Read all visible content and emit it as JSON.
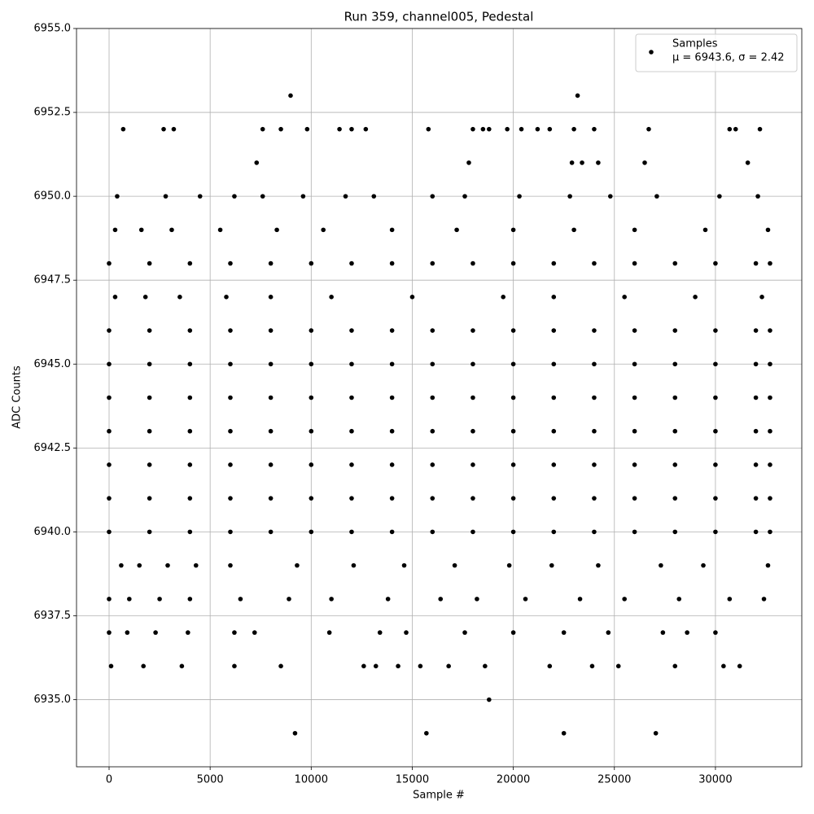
{
  "chart_data": {
    "type": "scatter",
    "title": "Run 359, channel005, Pedestal",
    "x_label": "Sample #",
    "y_label": "ADC Counts",
    "xlim": [
      -1611,
      34272
    ],
    "xticks": [
      0,
      5000,
      10000,
      15000,
      20000,
      25000,
      30000
    ],
    "ylim": [
      6933,
      6955
    ],
    "yticks": [
      {
        "value": 6935,
        "label": "6935.0"
      },
      {
        "value": 6937.5,
        "label": "6937.5"
      },
      {
        "value": 6940,
        "label": "6940.0"
      },
      {
        "value": 6942.5,
        "label": "6942.5"
      },
      {
        "value": 6945,
        "label": "6945.0"
      },
      {
        "value": 6947.5,
        "label": "6947.5"
      },
      {
        "value": 6950,
        "label": "6950.0"
      },
      {
        "value": 6952.5,
        "label": "6952.5"
      },
      {
        "value": 6955,
        "label": "6955.0"
      }
    ],
    "grid": true,
    "legend": "upper right",
    "series": [
      {
        "name": "Samples",
        "label": "μ = 6943.6, σ = 2.42",
        "color": "#000000",
        "x": [
          0,
          2000,
          4000,
          6000,
          8000,
          10000,
          12000,
          14000,
          16000,
          18000,
          20000,
          22000,
          24000,
          26000,
          28000,
          30000,
          32000,
          32700,
          0,
          2000,
          4000,
          6000,
          8000,
          10000,
          12000,
          14000,
          16000,
          18000,
          20000,
          22000,
          24000,
          26000,
          28000,
          30000,
          32000,
          32700,
          0,
          2000,
          4000,
          6000,
          8000,
          10000,
          12000,
          14000,
          16000,
          18000,
          20000,
          22000,
          24000,
          26000,
          28000,
          30000,
          32000,
          32700,
          0,
          2000,
          4000,
          6000,
          8000,
          10000,
          12000,
          14000,
          16000,
          18000,
          20000,
          22000,
          24000,
          26000,
          28000,
          30000,
          32000,
          32700,
          0,
          2000,
          4000,
          6000,
          8000,
          10000,
          12000,
          14000,
          16000,
          18000,
          20000,
          22000,
          24000,
          26000,
          28000,
          30000,
          32000,
          32700,
          0,
          2000,
          4000,
          6000,
          8000,
          10000,
          12000,
          14000,
          16000,
          18000,
          20000,
          22000,
          24000,
          26000,
          28000,
          30000,
          32000,
          32700,
          0,
          2000,
          4000,
          6000,
          8000,
          10000,
          12000,
          14000,
          16000,
          18000,
          20000,
          22000,
          24000,
          26000,
          28000,
          30000,
          32000,
          32700,
          0,
          2000,
          4000,
          6000,
          8000,
          10000,
          12000,
          14000,
          16000,
          18000,
          20000,
          22000,
          24000,
          26000,
          28000,
          30000,
          32000,
          32700,
          300,
          1800,
          3500,
          5800,
          8000,
          11000,
          15000,
          19500,
          22000,
          25500,
          29000,
          32300,
          300,
          1600,
          3100,
          5500,
          8300,
          10600,
          14000,
          17200,
          20000,
          23000,
          26000,
          29500,
          32600,
          400,
          2800,
          4500,
          6200,
          7600,
          9600,
          11700,
          13100,
          16000,
          17600,
          20300,
          22800,
          24800,
          27100,
          30200,
          32100,
          600,
          1500,
          2900,
          4300,
          6000,
          9300,
          12100,
          14600,
          17100,
          19800,
          21900,
          24200,
          27300,
          29400,
          32600,
          0,
          1000,
          2500,
          4000,
          6500,
          8900,
          11000,
          13800,
          16400,
          18200,
          20600,
          23300,
          25500,
          28200,
          30700,
          32400,
          0,
          900,
          2300,
          3900,
          6200,
          7200,
          10900,
          13400,
          14700,
          17600,
          20000,
          22500,
          24700,
          27400,
          28600,
          30000,
          100,
          1700,
          3600,
          6200,
          8500,
          12600,
          13200,
          14300,
          15400,
          16800,
          18600,
          21800,
          23900,
          25200,
          28000,
          30400,
          31200,
          700,
          2700,
          3200,
          7600,
          8500,
          9800,
          11400,
          12000,
          12700,
          15800,
          18000,
          18500,
          18800,
          19700,
          20400,
          21200,
          21800,
          23000,
          24000,
          26700,
          30700,
          31000,
          32200,
          7300,
          17800,
          22900,
          23400,
          24200,
          26500,
          31600,
          8980,
          23180,
          18800,
          9200,
          15700,
          22500,
          27050
        ],
        "values": [
          6940,
          6940,
          6940,
          6940,
          6940,
          6940,
          6940,
          6940,
          6940,
          6940,
          6940,
          6940,
          6940,
          6940,
          6940,
          6940,
          6940,
          6940,
          6941,
          6941,
          6941,
          6941,
          6941,
          6941,
          6941,
          6941,
          6941,
          6941,
          6941,
          6941,
          6941,
          6941,
          6941,
          6941,
          6941,
          6941,
          6942,
          6942,
          6942,
          6942,
          6942,
          6942,
          6942,
          6942,
          6942,
          6942,
          6942,
          6942,
          6942,
          6942,
          6942,
          6942,
          6942,
          6942,
          6943,
          6943,
          6943,
          6943,
          6943,
          6943,
          6943,
          6943,
          6943,
          6943,
          6943,
          6943,
          6943,
          6943,
          6943,
          6943,
          6943,
          6943,
          6944,
          6944,
          6944,
          6944,
          6944,
          6944,
          6944,
          6944,
          6944,
          6944,
          6944,
          6944,
          6944,
          6944,
          6944,
          6944,
          6944,
          6944,
          6945,
          6945,
          6945,
          6945,
          6945,
          6945,
          6945,
          6945,
          6945,
          6945,
          6945,
          6945,
          6945,
          6945,
          6945,
          6945,
          6945,
          6945,
          6946,
          6946,
          6946,
          6946,
          6946,
          6946,
          6946,
          6946,
          6946,
          6946,
          6946,
          6946,
          6946,
          6946,
          6946,
          6946,
          6946,
          6946,
          6948,
          6948,
          6948,
          6948,
          6948,
          6948,
          6948,
          6948,
          6948,
          6948,
          6948,
          6948,
          6948,
          6948,
          6948,
          6948,
          6948,
          6948,
          6947,
          6947,
          6947,
          6947,
          6947,
          6947,
          6947,
          6947,
          6947,
          6947,
          6947,
          6947,
          6949,
          6949,
          6949,
          6949,
          6949,
          6949,
          6949,
          6949,
          6949,
          6949,
          6949,
          6949,
          6949,
          6950,
          6950,
          6950,
          6950,
          6950,
          6950,
          6950,
          6950,
          6950,
          6950,
          6950,
          6950,
          6950,
          6950,
          6950,
          6950,
          6939,
          6939,
          6939,
          6939,
          6939,
          6939,
          6939,
          6939,
          6939,
          6939,
          6939,
          6939,
          6939,
          6939,
          6939,
          6938,
          6938,
          6938,
          6938,
          6938,
          6938,
          6938,
          6938,
          6938,
          6938,
          6938,
          6938,
          6938,
          6938,
          6938,
          6938,
          6937,
          6937,
          6937,
          6937,
          6937,
          6937,
          6937,
          6937,
          6937,
          6937,
          6937,
          6937,
          6937,
          6937,
          6937,
          6937,
          6936,
          6936,
          6936,
          6936,
          6936,
          6936,
          6936,
          6936,
          6936,
          6936,
          6936,
          6936,
          6936,
          6936,
          6936,
          6936,
          6936,
          6952,
          6952,
          6952,
          6952,
          6952,
          6952,
          6952,
          6952,
          6952,
          6952,
          6952,
          6952,
          6952,
          6952,
          6952,
          6952,
          6952,
          6952,
          6952,
          6952,
          6952,
          6952,
          6952,
          6951,
          6951,
          6951,
          6951,
          6951,
          6951,
          6951,
          6953,
          6953,
          6935,
          6934,
          6934,
          6934,
          6934
        ]
      }
    ]
  }
}
